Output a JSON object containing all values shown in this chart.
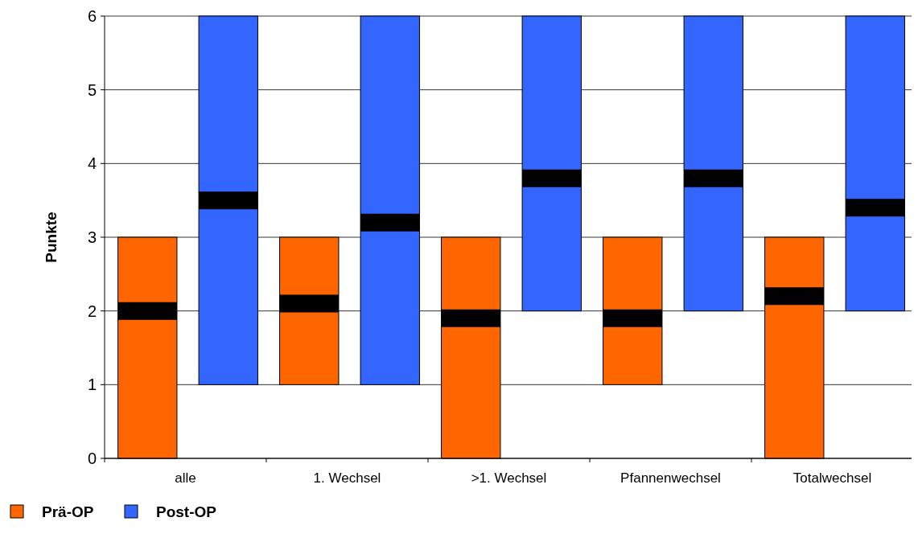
{
  "chart_data": {
    "type": "box",
    "ylabel": "Punkte",
    "categories": [
      "alle",
      "1. Wechsel",
      ">1. Wechsel",
      "Pfannenwechsel",
      "Totalwechsel"
    ],
    "ylim": [
      0,
      6
    ],
    "yticks": [
      0,
      1,
      2,
      3,
      4,
      5,
      6
    ],
    "grid": "y",
    "legend": "bottom left",
    "series": [
      {
        "name": "Prä-OP",
        "color": "#ff6600",
        "boxes": [
          {
            "low": 0,
            "q1": 0,
            "median": 2,
            "q3": 3,
            "high": 3
          },
          {
            "low": 1,
            "q1": 1,
            "median": 2.1,
            "q3": 3,
            "high": 3
          },
          {
            "low": 0,
            "q1": 0,
            "median": 1.9,
            "q3": 3,
            "high": 3
          },
          {
            "low": 1,
            "q1": 1,
            "median": 1.9,
            "q3": 3,
            "high": 3
          },
          {
            "low": 0,
            "q1": 0,
            "median": 2.2,
            "q3": 3,
            "high": 3
          }
        ]
      },
      {
        "name": "Post-OP",
        "color": "#3366ff",
        "boxes": [
          {
            "low": 1,
            "q1": 1,
            "median": 3.5,
            "q3": 6,
            "high": 6
          },
          {
            "low": 1,
            "q1": 1,
            "median": 3.2,
            "q3": 6,
            "high": 6
          },
          {
            "low": 2,
            "q1": 2,
            "median": 3.8,
            "q3": 6,
            "high": 6
          },
          {
            "low": 2,
            "q1": 2,
            "median": 3.8,
            "q3": 6,
            "high": 6
          },
          {
            "low": 2,
            "q1": 2,
            "median": 3.4,
            "q3": 6,
            "high": 6
          }
        ]
      }
    ]
  }
}
